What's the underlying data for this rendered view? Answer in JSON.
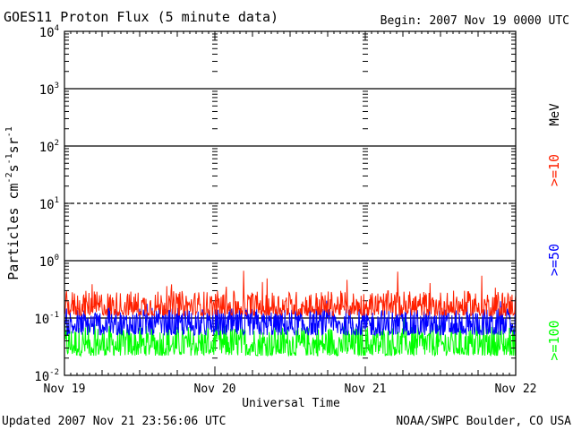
{
  "header": {
    "title": "GOES11 Proton Flux (5 minute data)",
    "begin": "Begin: 2007 Nov 19 0000 UTC"
  },
  "footer": {
    "updated": "Updated 2007 Nov 21 23:56:06 UTC",
    "source": "NOAA/SWPC Boulder, CO USA"
  },
  "chart_data": {
    "type": "line",
    "title": "GOES11 Proton Flux (5 minute data)",
    "xlabel": "Universal Time",
    "ylabel_base": "Particles cm",
    "ylabel_units": [
      "-2",
      "s",
      "-1",
      "sr",
      "-1"
    ],
    "y_scale": "log",
    "ylim": [
      0.01,
      10000
    ],
    "y_ticks": [
      {
        "base": "10",
        "exp": "4",
        "value": 10000
      },
      {
        "base": "10",
        "exp": "3",
        "value": 1000
      },
      {
        "base": "10",
        "exp": "2",
        "value": 100
      },
      {
        "base": "10",
        "exp": "1",
        "value": 10
      },
      {
        "base": "10",
        "exp": "0",
        "value": 1
      },
      {
        "base": "10",
        "exp": "-1",
        "value": 0.1
      },
      {
        "base": "10",
        "exp": "-2",
        "value": 0.01
      }
    ],
    "x_ticks": [
      "Nov 19",
      "Nov 20",
      "Nov 21",
      "Nov 22"
    ],
    "xlim_days": [
      0,
      3
    ],
    "threshold_line_y": 10,
    "energy_unit": "MeV",
    "series": [
      {
        "name": ">=10",
        "color": "#ff2000",
        "typical_low": 0.11,
        "typical_high": 0.3,
        "peak": 0.7
      },
      {
        "name": ">=50",
        "color": "#0000ff",
        "typical_low": 0.05,
        "typical_high": 0.15,
        "peak": 0.22
      },
      {
        "name": ">=100",
        "color": "#00ff00",
        "typical_low": 0.022,
        "typical_high": 0.075,
        "peak": 0.1
      }
    ]
  }
}
